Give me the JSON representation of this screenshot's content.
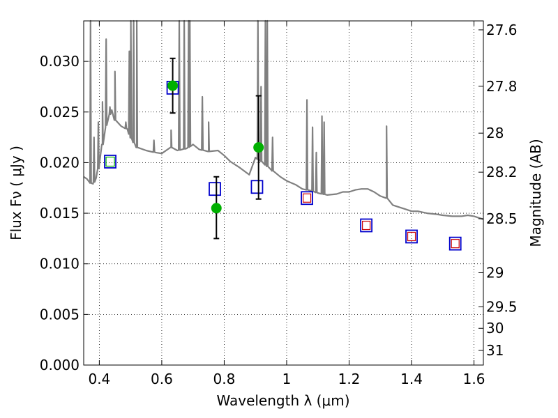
{
  "chart_data": {
    "type": "scatter",
    "xlabel": "Wavelength  λ (μm)",
    "ylabel_left": "Flux  Fν  ( μJy )",
    "ylabel_right": "Magnitude (AB)",
    "xlim": [
      0.35,
      1.63
    ],
    "ylim": [
      0.0,
      0.034
    ],
    "x_ticks": [
      0.4,
      0.6,
      0.8,
      1.0,
      1.2,
      1.4,
      1.6
    ],
    "x_tick_labels": [
      "0.4",
      "0.6",
      "0.8",
      "1",
      "1.2",
      "1.4",
      "1.6"
    ],
    "y_ticks": [
      0.0,
      0.005,
      0.01,
      0.015,
      0.02,
      0.025,
      0.03
    ],
    "y_tick_labels": [
      "0.000",
      "0.005",
      "0.010",
      "0.015",
      "0.020",
      "0.025",
      "0.030"
    ],
    "right_ticks": [
      27.6,
      27.8,
      28.0,
      28.2,
      28.5,
      29.0,
      29.5,
      30.0,
      31.0
    ],
    "right_tick_labels": [
      "27.6",
      "27.8",
      "28",
      "28.2",
      "28.5",
      "29",
      "29.5",
      "30",
      "31"
    ],
    "grid": true,
    "colors": {
      "model": "#808080",
      "observed": "#00b000",
      "model_box": "#0000cc",
      "model_inner": "#cc0000",
      "errorbar": "#000000"
    },
    "observed_points": [
      {
        "x": 0.435,
        "y": 0.0201
      },
      {
        "x": 0.635,
        "y": 0.0276,
        "err_low": 0.0249,
        "err_high": 0.0303
      },
      {
        "x": 0.775,
        "y": 0.0155,
        "err_low": 0.0125,
        "err_high": 0.0186
      },
      {
        "x": 0.91,
        "y": 0.0215,
        "err_low": 0.0164,
        "err_high": 0.0266
      }
    ],
    "model_photometry": [
      {
        "x": 0.435,
        "y": 0.0201
      },
      {
        "x": 0.635,
        "y": 0.0274
      },
      {
        "x": 0.77,
        "y": 0.0174
      },
      {
        "x": 0.905,
        "y": 0.0176
      },
      {
        "x": 1.065,
        "y": 0.0165
      },
      {
        "x": 1.255,
        "y": 0.0138
      },
      {
        "x": 1.4,
        "y": 0.0127
      },
      {
        "x": 1.54,
        "y": 0.012
      }
    ],
    "model_photometry_inner_red": [
      1.065,
      1.255,
      1.4,
      1.54
    ],
    "model_photometry_inner_green": [
      0.435
    ],
    "model_spectrum": {
      "continuum": [
        [
          0.35,
          0.0186
        ],
        [
          0.36,
          0.0184
        ],
        [
          0.37,
          0.018
        ],
        [
          0.38,
          0.0179
        ],
        [
          0.39,
          0.0185
        ],
        [
          0.4,
          0.0198
        ],
        [
          0.41,
          0.0218
        ],
        [
          0.42,
          0.0235
        ],
        [
          0.43,
          0.0245
        ],
        [
          0.44,
          0.0252
        ],
        [
          0.45,
          0.0242
        ],
        [
          0.47,
          0.0236
        ],
        [
          0.49,
          0.0233
        ],
        [
          0.5,
          0.0225
        ],
        [
          0.52,
          0.0215
        ],
        [
          0.55,
          0.0212
        ],
        [
          0.58,
          0.021
        ],
        [
          0.6,
          0.0209
        ],
        [
          0.63,
          0.0215
        ],
        [
          0.65,
          0.0212
        ],
        [
          0.68,
          0.0214
        ],
        [
          0.7,
          0.0218
        ],
        [
          0.72,
          0.0213
        ],
        [
          0.75,
          0.0211
        ],
        [
          0.78,
          0.0212
        ],
        [
          0.8,
          0.0207
        ],
        [
          0.82,
          0.0201
        ],
        [
          0.85,
          0.0195
        ],
        [
          0.88,
          0.0188
        ],
        [
          0.9,
          0.0205
        ],
        [
          0.92,
          0.0201
        ],
        [
          0.95,
          0.0193
        ],
        [
          0.98,
          0.0186
        ],
        [
          1.0,
          0.0182
        ],
        [
          1.03,
          0.0178
        ],
        [
          1.05,
          0.0174
        ],
        [
          1.08,
          0.0172
        ],
        [
          1.1,
          0.017
        ],
        [
          1.13,
          0.0168
        ],
        [
          1.16,
          0.0169
        ],
        [
          1.18,
          0.0171
        ],
        [
          1.2,
          0.0171
        ],
        [
          1.22,
          0.0173
        ],
        [
          1.24,
          0.0174
        ],
        [
          1.26,
          0.0174
        ],
        [
          1.28,
          0.0171
        ],
        [
          1.3,
          0.0167
        ],
        [
          1.32,
          0.0165
        ],
        [
          1.34,
          0.0158
        ],
        [
          1.36,
          0.0156
        ],
        [
          1.38,
          0.0154
        ],
        [
          1.4,
          0.0152
        ],
        [
          1.42,
          0.0152
        ],
        [
          1.45,
          0.015
        ],
        [
          1.48,
          0.0149
        ],
        [
          1.5,
          0.0148
        ],
        [
          1.53,
          0.0147
        ],
        [
          1.56,
          0.0147
        ],
        [
          1.58,
          0.0148
        ],
        [
          1.6,
          0.0147
        ],
        [
          1.62,
          0.0145
        ],
        [
          1.63,
          0.0144
        ]
      ],
      "lines": [
        [
          0.372,
          0.034
        ],
        [
          0.383,
          0.0225
        ],
        [
          0.397,
          0.024
        ],
        [
          0.41,
          0.026
        ],
        [
          0.422,
          0.0322
        ],
        [
          0.434,
          0.0255
        ],
        [
          0.45,
          0.029
        ],
        [
          0.485,
          0.024
        ],
        [
          0.496,
          0.031
        ],
        [
          0.501,
          0.034
        ],
        [
          0.51,
          0.034
        ],
        [
          0.52,
          0.034
        ],
        [
          0.575,
          0.0222
        ],
        [
          0.63,
          0.0232
        ],
        [
          0.656,
          0.034
        ],
        [
          0.672,
          0.034
        ],
        [
          0.686,
          0.034
        ],
        [
          0.69,
          0.034
        ],
        [
          0.73,
          0.0265
        ],
        [
          0.75,
          0.024
        ],
        [
          0.908,
          0.034
        ],
        [
          0.918,
          0.0275
        ],
        [
          0.932,
          0.034
        ],
        [
          0.938,
          0.034
        ],
        [
          0.955,
          0.0225
        ],
        [
          1.065,
          0.0262
        ],
        [
          1.083,
          0.0235
        ],
        [
          1.095,
          0.021
        ],
        [
          1.113,
          0.0246
        ],
        [
          1.12,
          0.024
        ],
        [
          1.32,
          0.0236
        ]
      ]
    }
  }
}
